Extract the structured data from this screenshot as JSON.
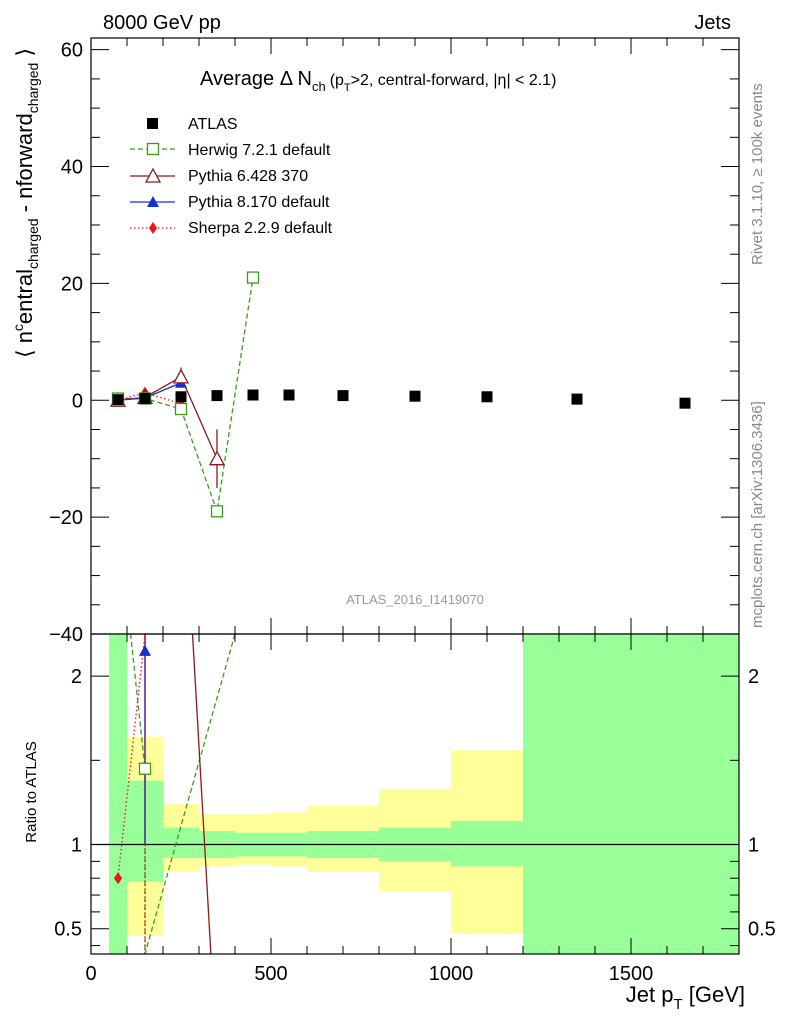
{
  "header": {
    "energy_label": "8000 GeV pp",
    "process_label": "Jets",
    "side_label_rivet": "Rivet 3.1.10, ≥ 100k events",
    "side_label_mcplots": "mcplots.cern.ch [arXiv:1306.3436]",
    "analysis_id": "ATLAS_2016_I1419070"
  },
  "chart_data": [
    {
      "type": "scatter",
      "panel": "main",
      "title_parts": {
        "main": "Average Δ N",
        "sub": "ch",
        "p": "(p",
        "psub": "T",
        "rest": ">2, central-forward, |η| < 2.1)"
      },
      "ylabel_parts": {
        "open": "⟨ n",
        "sup": "c",
        "entral": "entral",
        "sub1": "charged",
        "mid": " - n",
        "forward": "forward",
        "sub2": "charged",
        "close": " ⟩"
      },
      "ylim": [
        -40,
        62
      ],
      "yticks": [
        -40,
        -20,
        0,
        20,
        40,
        60
      ],
      "ytick_labels": [
        "−40",
        "−20",
        "0",
        "20",
        "40",
        "60"
      ],
      "xlim": [
        0,
        1800
      ],
      "legend_position": "top-left",
      "series": [
        {
          "name": "ATLAS",
          "marker": "filled-square",
          "color": "#000000",
          "x": [
            75,
            150,
            250,
            350,
            450,
            550,
            700,
            900,
            1100,
            1350,
            1650
          ],
          "y": [
            0.1,
            0.3,
            0.6,
            0.8,
            0.9,
            0.9,
            0.8,
            0.7,
            0.6,
            0.2,
            -0.5
          ]
        },
        {
          "name": "Herwig 7.2.1 default",
          "marker": "open-square",
          "line": "dashed",
          "color": "#3a9b1a",
          "x": [
            75,
            150,
            250,
            350,
            450
          ],
          "y": [
            0.3,
            0.3,
            -1.5,
            -19.0,
            21.0
          ]
        },
        {
          "name": "Pythia 6.428 370",
          "marker": "open-triangle",
          "line": "solid",
          "color": "#8b1a1a",
          "x": [
            75,
            150,
            250,
            350
          ],
          "y": [
            0.0,
            0.5,
            4.0,
            -10.0
          ],
          "yerr": [
            0.4,
            0.4,
            1.6,
            5.0
          ]
        },
        {
          "name": "Pythia 8.170 default",
          "marker": "filled-triangle",
          "line": "solid",
          "color": "#1533cc",
          "x": [
            75,
            150,
            250
          ],
          "y": [
            0.0,
            0.4,
            3.0
          ]
        },
        {
          "name": "Sherpa 2.2.9 default",
          "marker": "filled-diamond",
          "line": "dotted",
          "color": "#ee1111",
          "x": [
            75,
            150,
            250
          ],
          "y": [
            0.0,
            1.3,
            -0.6
          ]
        }
      ]
    },
    {
      "type": "area",
      "panel": "ratio",
      "ylabel": "Ratio to ATLAS",
      "xlabel_parts": {
        "main": "Jet p",
        "sub": "T",
        "unit": " [GeV]"
      },
      "ylim": [
        0.35,
        2.25
      ],
      "yticks": [
        0.5,
        1,
        2
      ],
      "ytick_labels": [
        "0.5",
        "1",
        "2"
      ],
      "xlim": [
        0,
        1800
      ],
      "xticks": [
        0,
        500,
        1000,
        1500
      ],
      "xtick_labels": [
        "0",
        "500",
        "1000",
        "1500"
      ],
      "bands": [
        {
          "xlo": 50,
          "xhi": 100,
          "g": [
            0.35,
            2.25
          ],
          "y": [
            0.35,
            2.25
          ]
        },
        {
          "xlo": 100,
          "xhi": 200,
          "g": [
            0.78,
            1.38
          ],
          "y": [
            0.46,
            1.64
          ]
        },
        {
          "xlo": 200,
          "xhi": 300,
          "g": [
            0.92,
            1.1
          ],
          "y": [
            0.84,
            1.24
          ]
        },
        {
          "xlo": 300,
          "xhi": 400,
          "g": [
            0.92,
            1.08
          ],
          "y": [
            0.87,
            1.18
          ]
        },
        {
          "xlo": 400,
          "xhi": 500,
          "g": [
            0.93,
            1.07
          ],
          "y": [
            0.88,
            1.18
          ]
        },
        {
          "xlo": 500,
          "xhi": 600,
          "g": [
            0.93,
            1.07
          ],
          "y": [
            0.87,
            1.19
          ]
        },
        {
          "xlo": 600,
          "xhi": 800,
          "g": [
            0.92,
            1.08
          ],
          "y": [
            0.84,
            1.23
          ]
        },
        {
          "xlo": 800,
          "xhi": 1000,
          "g": [
            0.9,
            1.1
          ],
          "y": [
            0.72,
            1.33
          ]
        },
        {
          "xlo": 1000,
          "xhi": 1200,
          "g": [
            0.87,
            1.14
          ],
          "y": [
            0.47,
            1.56
          ]
        },
        {
          "xlo": 1200,
          "xhi": 1800,
          "g": [
            0.35,
            2.25
          ],
          "y": [
            0.35,
            2.25
          ]
        }
      ],
      "series": [
        {
          "name": "Herwig 7.2.1 default",
          "line": "dashed",
          "color": "#3a9b1a",
          "x": [
            110,
            150,
            150,
            400
          ],
          "y": [
            2.25,
            1.45,
            0.35,
            2.25
          ]
        },
        {
          "name": "Pythia 6.428 370",
          "line": "solid",
          "color": "#8b1a1a",
          "x": [
            282,
            333
          ],
          "y": [
            2.25,
            0.35
          ]
        },
        {
          "name": "Pythia 8.170 default",
          "line": "solid",
          "color": "#1533cc",
          "x": [
            150
          ],
          "y": [
            2.15
          ],
          "yerr_lo": [
            1.0
          ],
          "yerr_hi": [
            2.25
          ]
        },
        {
          "name": "Sherpa 2.2.9 default",
          "line": "dotted",
          "color": "#ee1111",
          "x": [
            75,
            150,
            150
          ],
          "y": [
            0.8,
            2.25,
            0.35
          ]
        }
      ]
    }
  ]
}
